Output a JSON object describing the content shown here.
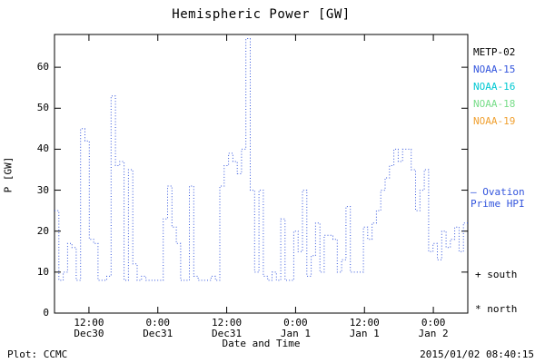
{
  "title": "Hemispheric Power [GW]",
  "ylabel": "P [GW]",
  "xlabel": "Date and Time",
  "footer": {
    "left": "Plot: CCMC",
    "right": "2015/01/02 08:40:15"
  },
  "legend": {
    "satellites": [
      {
        "label": "METP-02",
        "color": "#000000"
      },
      {
        "label": "NOAA-15",
        "color": "#3355dd"
      },
      {
        "label": "NOAA-16",
        "color": "#00c8d2"
      },
      {
        "label": "NOAA-18",
        "color": "#77dd88"
      },
      {
        "label": "NOAA-19",
        "color": "#f0a030"
      }
    ],
    "hpi_label_line1": "— Ovation",
    "hpi_label_line2": "Prime HPI",
    "hpi_color": "#3355dd",
    "marker_south": "+ south",
    "marker_north": "* north"
  },
  "chart_data": {
    "type": "line",
    "line_style": "dotted-step",
    "title": "Hemispheric Power [GW]",
    "xlabel": "Date and Time",
    "ylabel": "P [GW]",
    "ylim": [
      0,
      68
    ],
    "y_ticks": [
      0,
      10,
      20,
      30,
      40,
      50,
      60
    ],
    "x_range_hours": [
      0,
      72
    ],
    "x_ticks": [
      {
        "hour": 6,
        "time": "12:00",
        "date": "Dec30"
      },
      {
        "hour": 18,
        "time": "0:00",
        "date": "Dec31"
      },
      {
        "hour": 30,
        "time": "12:00",
        "date": "Dec31"
      },
      {
        "hour": 42,
        "time": "0:00",
        "date": "Jan 1"
      },
      {
        "hour": 54,
        "time": "12:00",
        "date": "Jan 1"
      },
      {
        "hour": 66,
        "time": "0:00",
        "date": "Jan 2"
      }
    ],
    "grid": false,
    "legend_position": "right",
    "series": [
      {
        "name": "NOAA-15 Ovation Prime HPI",
        "color": "#3355dd",
        "values": [
          25,
          8,
          10,
          17,
          16,
          8,
          45,
          42,
          18,
          17,
          8,
          8,
          9,
          53,
          36,
          37,
          8,
          35,
          12,
          8,
          9,
          8,
          8,
          8,
          8,
          23,
          31,
          21,
          17,
          8,
          8,
          31,
          9,
          8,
          8,
          8,
          9,
          8,
          31,
          36,
          39,
          37,
          34,
          40,
          67,
          30,
          10,
          30,
          9,
          8,
          10,
          8,
          23,
          8,
          8,
          20,
          15,
          30,
          9,
          14,
          22,
          10,
          19,
          19,
          18,
          10,
          13,
          26,
          10,
          10,
          10,
          21,
          18,
          22,
          25,
          30,
          33,
          36,
          40,
          37,
          40,
          40,
          35,
          25,
          30,
          35,
          15,
          17,
          13,
          20,
          16,
          18,
          21,
          15,
          22
        ]
      }
    ]
  }
}
